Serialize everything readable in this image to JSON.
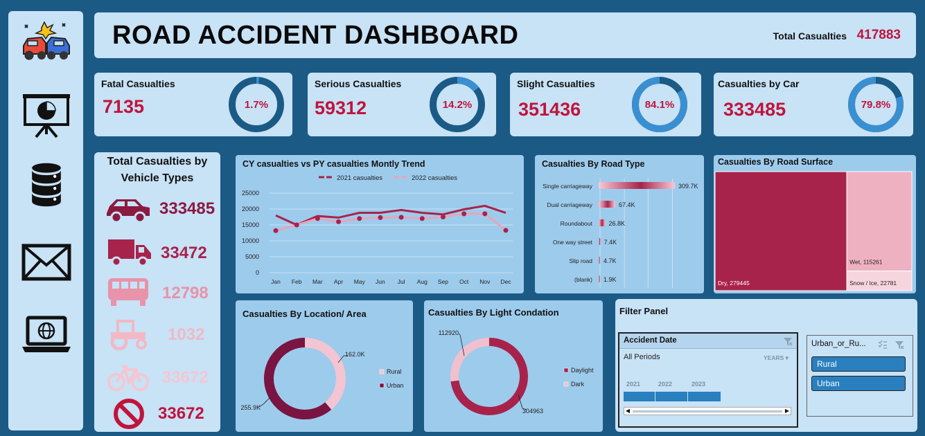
{
  "header": {
    "title": "ROAD ACCIDENT DASHBOARD",
    "total_label": "Total Casualties",
    "total_value": "417883"
  },
  "sidebar": {
    "icons": [
      "car-crash-logo-icon",
      "presentation-chart-icon",
      "database-icon",
      "mail-icon",
      "laptop-globe-icon"
    ]
  },
  "kpis": [
    {
      "label": "Fatal Casualties",
      "value": "7135",
      "pct": "1.7%",
      "fraction": 0.017
    },
    {
      "label": "Serious Casualties",
      "value": "59312",
      "pct": "14.2%",
      "fraction": 0.142
    },
    {
      "label": "Slight Casualties",
      "value": "351436",
      "pct": "84.1%",
      "fraction": 0.841
    },
    {
      "label": "Casualties by Car",
      "value": "333485",
      "pct": "79.8%",
      "fraction": 0.798
    }
  ],
  "vehicle_types": {
    "title": "Total Casualties by Vehicle Types",
    "rows": [
      {
        "icon": "car-icon",
        "value": "333485",
        "color": "#8b1a40"
      },
      {
        "icon": "truck-icon",
        "value": "33472",
        "color": "#a8234b"
      },
      {
        "icon": "bus-icon",
        "value": "12798",
        "color": "#e893a9"
      },
      {
        "icon": "tractor-icon",
        "value": "1032",
        "color": "#f2b8c6"
      },
      {
        "icon": "bicycle-icon",
        "value": "33672",
        "color": "#f5c6d1"
      },
      {
        "icon": "no-entry-icon",
        "value": "33672",
        "color": "#c0143c"
      }
    ]
  },
  "colors": {
    "accent": "#c0143c",
    "dark_maroon": "#8b1a40",
    "pink": "#e8a4b8",
    "panel": "#c8e2f6",
    "chart_bg": "#9dcbec",
    "ring": "#1b5a85",
    "ring_fill": "#3a8fd0"
  },
  "chart_data": [
    {
      "type": "line",
      "title": "CY casualties vs PY casualties Montly Trend",
      "categories": [
        "Jan",
        "Feb",
        "Mar",
        "Apr",
        "May",
        "Jun",
        "Jul",
        "Aug",
        "Sep",
        "Oct",
        "Nov",
        "Dec"
      ],
      "series": [
        {
          "name": "2021 casualties",
          "values": [
            18000,
            15000,
            17800,
            17300,
            18800,
            18800,
            19700,
            18800,
            18300,
            19900,
            21000,
            18800
          ]
        },
        {
          "name": "2022 casualties",
          "values": [
            13200,
            15000,
            17000,
            16000,
            17000,
            17300,
            17400,
            17000,
            17500,
            18500,
            18500,
            13300
          ]
        }
      ],
      "ylim": [
        0,
        25000
      ],
      "yticks": [
        "0",
        "5000",
        "10000",
        "15000",
        "20000",
        "25000"
      ],
      "legend": "top"
    },
    {
      "type": "bar",
      "title": "Casualties By Road Type",
      "categories": [
        "Single carriageway",
        "Dual carriageway",
        "Roundabout",
        "One way street",
        "Slip road",
        "(blank)"
      ],
      "values": [
        309700,
        67400,
        26800,
        7400,
        4700,
        1900
      ],
      "labels": [
        "309.7K",
        "67.4K",
        "26.8K",
        "7.4K",
        "4.7K",
        "1.9K"
      ]
    },
    {
      "type": "treemap",
      "title": "Casualties By Road Surface",
      "categories": [
        "Dry",
        "Wet",
        "Snow / Ice"
      ],
      "values": [
        279445,
        115261,
        22781
      ],
      "labels": [
        "Dry, 279445",
        "Wet, 115261",
        "Snow / Ice, 22781"
      ]
    },
    {
      "type": "pie",
      "title": "Casualties By Location/ Area",
      "categories": [
        "Rural",
        "Urban"
      ],
      "values": [
        162000,
        255900
      ],
      "labels": [
        "162.0K",
        "255.9K"
      ]
    },
    {
      "type": "pie",
      "title": "Casualties By Light Condation",
      "categories": [
        "Daylight",
        "Dark"
      ],
      "values": [
        304963,
        112920
      ],
      "labels": [
        "304963",
        "112920"
      ]
    }
  ],
  "filter": {
    "title": "Filter Panel",
    "date_slicer": {
      "title": "Accident Date",
      "period": "All Periods",
      "granularity": "YEARS",
      "years": [
        "2021",
        "2022",
        "2023"
      ]
    },
    "area_slicer": {
      "title": "Urban_or_Ru...",
      "options": [
        "Rural",
        "Urban"
      ]
    }
  }
}
